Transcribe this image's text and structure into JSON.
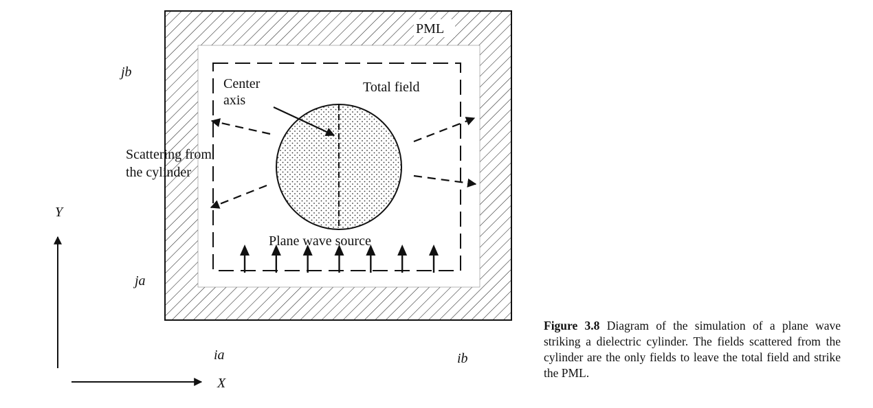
{
  "labels": {
    "pml": "PML",
    "center_axis_line1": "Center",
    "center_axis_line2": "axis",
    "total_field": "Total field",
    "scattering_line1": "Scattering from",
    "scattering_line2": "the cylinder",
    "plane_wave_source": "Plane wave source",
    "jb": "jb",
    "ja": "ja",
    "ia": "ia",
    "ib": "ib",
    "y_axis": "Y",
    "x_axis": "X"
  },
  "caption": {
    "figure_number": "Figure 3.8",
    "text": "Diagram of the simulation of a plane wave striking a dielectric cylinder. The fields scattered from the cylinder are the only fields to leave the total field and strike the PML."
  },
  "source_arrow_count": 7
}
